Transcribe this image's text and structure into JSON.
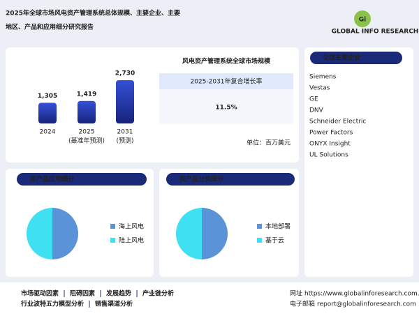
{
  "header": {
    "title_lines": [
      "2025年全球市场风电资产管理系统总体规模、主要企业、主要",
      "地区、产品和应用细分研究报告"
    ],
    "logo_mark": "Gi",
    "logo_text": "GLOBAL INFO RESEARCH"
  },
  "market_summary": {
    "title": "风电资产管理系统全球市场规模",
    "cagr_label": "2025-2031年复合增长率",
    "cagr_value": "11.5%",
    "unit": "单位：百万美元"
  },
  "companies": {
    "title": "全球主要企业",
    "items": [
      "Siemens",
      "Vestas",
      "GE",
      "DNV",
      "Schneider Electric",
      "Power Factors",
      "ONYX Insight",
      "UL Solutions"
    ]
  },
  "chart_data": [
    {
      "type": "bar",
      "categories": [
        "2024",
        "2025",
        "2031"
      ],
      "sublabels": [
        null,
        "(基准年预测)",
        "(预测)"
      ],
      "values": [
        1305,
        1419,
        2730
      ],
      "value_labels": [
        "1,305",
        "1,419",
        "2,730"
      ],
      "color": "#2a3fb8"
    },
    {
      "type": "pie",
      "title": "按产品应用细分",
      "categories": [
        "海上风电",
        "陆上风电"
      ],
      "values": [
        50,
        50
      ],
      "colors": [
        "#5b93d8",
        "#3fe0f2"
      ]
    },
    {
      "type": "pie",
      "title": "按产品分类细分",
      "categories": [
        "本地部署",
        "基于云"
      ],
      "values": [
        50,
        50
      ],
      "colors": [
        "#5b93d8",
        "#3fe0f2"
      ]
    }
  ],
  "footer": {
    "links": [
      [
        "市场驱动因素",
        "阻碍因素",
        "发展趋势",
        "产业链分析"
      ],
      [
        "行业波特五力模型分析",
        "销售渠道分析"
      ]
    ],
    "contacts": [
      {
        "label": "网址",
        "value": "https://www.globalinforesearch.com.cn"
      },
      {
        "label": "电子邮箱",
        "value": "report@globalinforesearch.com"
      }
    ]
  }
}
